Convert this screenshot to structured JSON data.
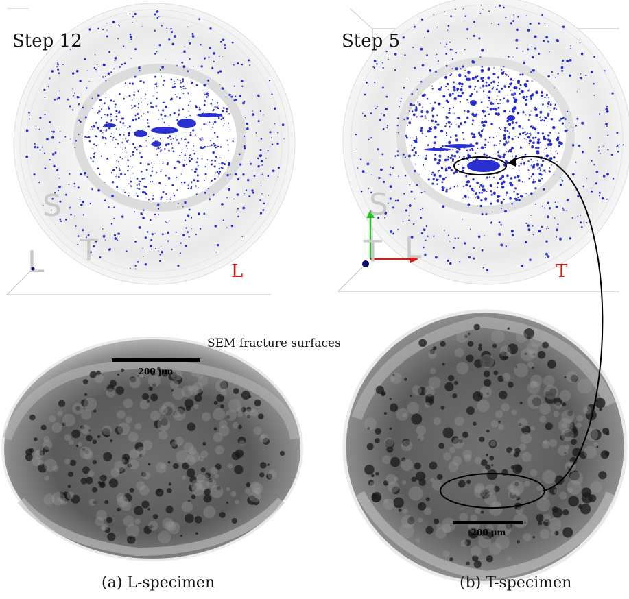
{
  "figure": {
    "panel_a": {
      "step_label": "Step 12",
      "axis_labels": {
        "s": "S",
        "l": "L",
        "t": "T",
        "right": "L"
      },
      "scale_bar": "200 µm",
      "caption": "(a) L-specimen"
    },
    "panel_b": {
      "step_label": "Step 5",
      "axis_labels": {
        "s": "S",
        "t": "T",
        "l": "L",
        "right": "T"
      },
      "scale_bar": "200 µm",
      "caption": "(b) T-specimen"
    },
    "sem_label": "SEM fracture surfaces"
  },
  "colors": {
    "pores": "#2a2fd0",
    "axis_red": "#e01515",
    "axis_green": "#1fc41f",
    "axis_blue": "#0a0a6a"
  }
}
